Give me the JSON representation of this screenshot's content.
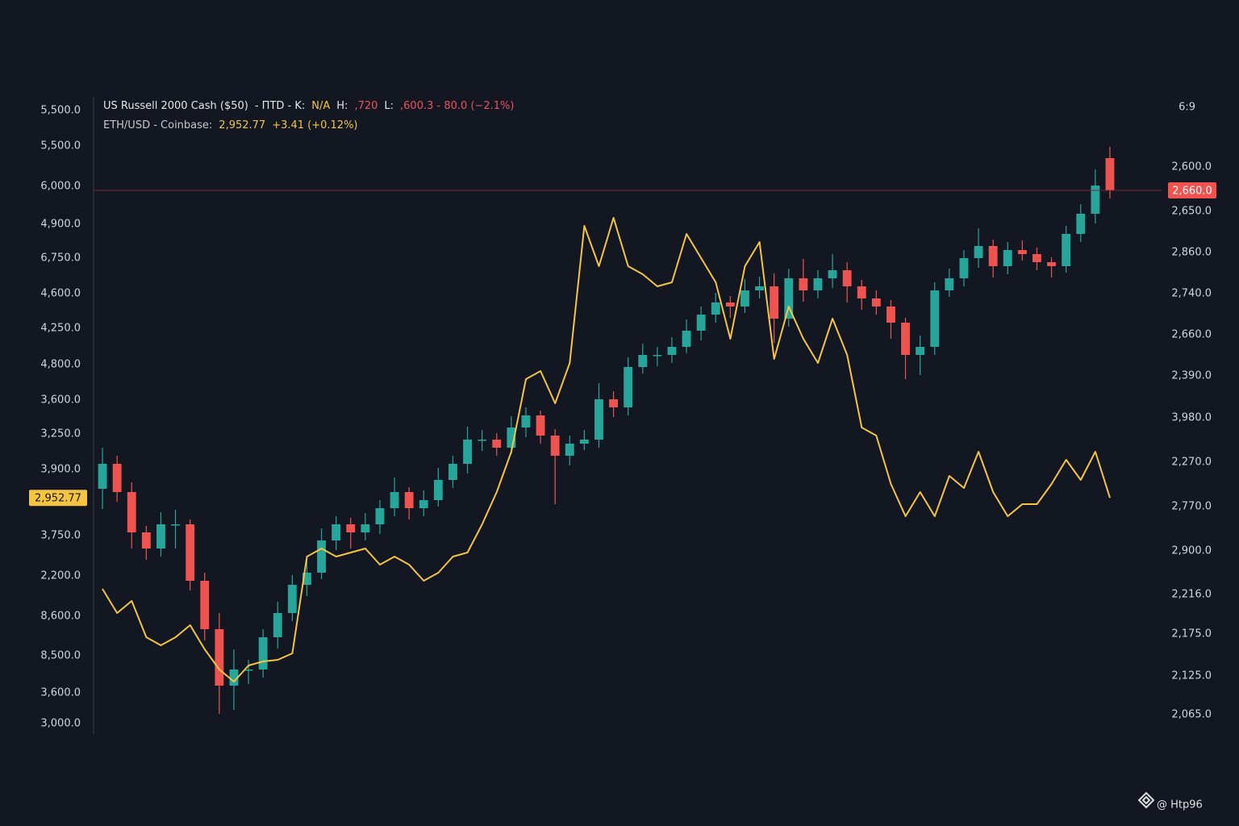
{
  "header": {
    "line1": [
      {
        "text": "US Russell 2000 Cash ($50)",
        "color": "#e6e6e6"
      },
      {
        "text": "- ΠTD - K:",
        "color": "#e6e6e6"
      },
      {
        "text": "N/A",
        "color": "#f5c542"
      },
      {
        "text": "H:",
        "color": "#e6e6e6"
      },
      {
        "text": ",720",
        "color": "#f0525a"
      },
      {
        "text": "L:",
        "color": "#e6e6e6"
      },
      {
        "text": ",600.3 - 80.0 (−2.1%)",
        "color": "#f0525a"
      }
    ],
    "line2": [
      {
        "text": "ETH/USD - Coinbase:",
        "color": "#c8c8c8"
      },
      {
        "text": "2,952.77",
        "color": "#f5c542"
      },
      {
        "text": "+3.41 (+0.12%)",
        "color": "#f5c542"
      }
    ]
  },
  "left_axis_labels": [
    "5,500.0",
    "5,500.0",
    "6,000.0",
    "4,900.0",
    "6,750.0",
    "4,600.0",
    "4,250.0",
    "4,800.0",
    "3,600.0",
    "3,250.0",
    "3,900.0",
    "3,750.0",
    "2,200.0",
    "8,600.0",
    "8,500.0",
    "3,600.0",
    "3,000.0"
  ],
  "right_axis_labels": [
    "2,600.0",
    "2,650.0",
    "2,860.0",
    "2,740.0",
    "2,660.0",
    "2,390.0",
    "3,980.0",
    "2,270.0",
    "2,770.0",
    "2,900.0",
    "2,216.0",
    "2,175.0",
    "2,125.0",
    "2,065.0"
  ],
  "corner_label": "6:9",
  "watermark": "@ Htp96",
  "chart_data": {
    "type": "candlestick",
    "up_color": "#26a69a",
    "down_color": "#ef5350",
    "ylim": [
      1986,
      2776
    ],
    "open": [
      2290,
      2321,
      2286,
      2236,
      2216,
      2246,
      2246,
      2176,
      2116,
      2046,
      2066,
      2066,
      2106,
      2136,
      2171,
      2186,
      2226,
      2246,
      2236,
      2246,
      2266,
      2286,
      2266,
      2276,
      2301,
      2321,
      2351,
      2351,
      2341,
      2366,
      2381,
      2356,
      2331,
      2346,
      2351,
      2401,
      2391,
      2441,
      2456,
      2456,
      2466,
      2486,
      2506,
      2521,
      2516,
      2536,
      2541,
      2501,
      2551,
      2536,
      2551,
      2561,
      2541,
      2526,
      2516,
      2496,
      2456,
      2466,
      2536,
      2551,
      2576,
      2591,
      2566,
      2586,
      2581,
      2571,
      2566,
      2606,
      2631,
      2700
    ],
    "high": [
      2341,
      2331,
      2298,
      2244,
      2261,
      2264,
      2252,
      2186,
      2136,
      2091,
      2078,
      2116,
      2150,
      2183,
      2206,
      2241,
      2256,
      2254,
      2260,
      2276,
      2304,
      2292,
      2288,
      2316,
      2331,
      2367,
      2363,
      2359,
      2380,
      2391,
      2387,
      2364,
      2356,
      2363,
      2421,
      2411,
      2453,
      2470,
      2466,
      2478,
      2500,
      2516,
      2533,
      2529,
      2550,
      2553,
      2557,
      2563,
      2575,
      2561,
      2581,
      2571,
      2549,
      2536,
      2524,
      2502,
      2480,
      2546,
      2563,
      2586,
      2613,
      2599,
      2596,
      2598,
      2589,
      2577,
      2616,
      2643,
      2686,
      2714
    ],
    "low": [
      2265,
      2274,
      2216,
      2202,
      2206,
      2216,
      2164,
      2102,
      2011,
      2016,
      2048,
      2056,
      2092,
      2126,
      2157,
      2178,
      2214,
      2216,
      2226,
      2234,
      2256,
      2252,
      2256,
      2268,
      2291,
      2309,
      2337,
      2331,
      2333,
      2354,
      2346,
      2271,
      2319,
      2338,
      2341,
      2379,
      2381,
      2433,
      2442,
      2446,
      2458,
      2474,
      2496,
      2502,
      2508,
      2526,
      2471,
      2491,
      2522,
      2526,
      2539,
      2521,
      2512,
      2506,
      2476,
      2426,
      2431,
      2456,
      2528,
      2541,
      2564,
      2552,
      2556,
      2573,
      2561,
      2552,
      2558,
      2596,
      2619,
      2650
    ],
    "close": [
      2321,
      2286,
      2236,
      2216,
      2246,
      2246,
      2176,
      2116,
      2046,
      2066,
      2066,
      2106,
      2136,
      2171,
      2186,
      2226,
      2246,
      2236,
      2246,
      2266,
      2286,
      2266,
      2276,
      2301,
      2321,
      2351,
      2351,
      2341,
      2366,
      2381,
      2356,
      2331,
      2346,
      2351,
      2401,
      2391,
      2441,
      2456,
      2456,
      2466,
      2486,
      2506,
      2521,
      2516,
      2536,
      2541,
      2501,
      2551,
      2536,
      2551,
      2561,
      2541,
      2526,
      2516,
      2496,
      2456,
      2466,
      2536,
      2551,
      2576,
      2591,
      2566,
      2586,
      2581,
      2571,
      2566,
      2606,
      2631,
      2666,
      2660
    ],
    "close_labels_last": "2,660.0",
    "series": [
      {
        "name": "ETH/USD - Coinbase",
        "color": "#f5c542",
        "ylim": [
          2660,
          3450
        ],
        "values": [
          2840,
          2810,
          2825,
          2780,
          2770,
          2780,
          2795,
          2765,
          2740,
          2725,
          2745,
          2750,
          2752,
          2760,
          2880,
          2890,
          2880,
          2885,
          2890,
          2870,
          2880,
          2870,
          2850,
          2860,
          2880,
          2885,
          2920,
          2960,
          3010,
          3100,
          3110,
          3070,
          3120,
          3290,
          3240,
          3300,
          3240,
          3230,
          3215,
          3220,
          3280,
          3250,
          3220,
          3150,
          3240,
          3270,
          3125,
          3190,
          3150,
          3120,
          3175,
          3130,
          3040,
          3030,
          2970,
          2930,
          2960,
          2930,
          2980,
          2965,
          3010,
          2960,
          2930,
          2945,
          2945,
          2970,
          3000,
          2975,
          3010,
          2952.77
        ],
        "last_label": "2,952.77"
      }
    ]
  }
}
